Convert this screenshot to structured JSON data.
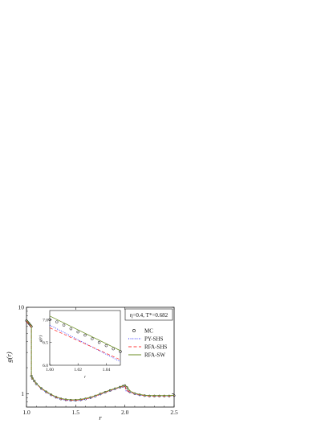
{
  "chart_data": [
    {
      "type": "line",
      "xlabel": "r",
      "ylabel": "g(r)",
      "xlim": [
        1.0,
        2.5
      ],
      "ylim": [
        0.7,
        10
      ],
      "yscale": "log",
      "xticks": [
        "1.0",
        "1.5",
        "2.0",
        "2.5"
      ],
      "yticks": [
        "1",
        "10"
      ],
      "annotation": "η=0.4, T*=0.682",
      "legend_position": "right",
      "legend": [
        "MC",
        "PY-SHS",
        "RFA-SHS",
        "RFA-SW"
      ],
      "series": [
        {
          "name": "MC",
          "style": "open-circles",
          "color": "#000000",
          "x": [
            1.0,
            1.01,
            1.02,
            1.03,
            1.04,
            1.05,
            1.05,
            1.06,
            1.08,
            1.1,
            1.15,
            1.2,
            1.25,
            1.3,
            1.35,
            1.4,
            1.45,
            1.5,
            1.55,
            1.6,
            1.65,
            1.7,
            1.75,
            1.8,
            1.85,
            1.9,
            1.95,
            1.98,
            2.0,
            2.02,
            2.03,
            2.05,
            2.1,
            2.15,
            2.2,
            2.25,
            2.3,
            2.35,
            2.4,
            2.45,
            2.5
          ],
          "y": [
            7.0,
            6.8,
            6.6,
            6.4,
            6.2,
            6.0,
            1.6,
            1.5,
            1.4,
            1.3,
            1.15,
            1.05,
            0.97,
            0.91,
            0.87,
            0.85,
            0.84,
            0.84,
            0.85,
            0.87,
            0.9,
            0.94,
            0.99,
            1.04,
            1.09,
            1.14,
            1.19,
            1.22,
            1.24,
            1.18,
            1.1,
            1.05,
            1.0,
            0.97,
            0.95,
            0.94,
            0.94,
            0.94,
            0.94,
            0.94,
            0.95
          ]
        },
        {
          "name": "PY-SHS",
          "style": "dotted",
          "color": "#1a1aff",
          "x": [
            1.0,
            1.05,
            1.05,
            1.06,
            1.08,
            1.1,
            1.15,
            1.2,
            1.25,
            1.3,
            1.35,
            1.4,
            1.45,
            1.5,
            1.55,
            1.6,
            1.65,
            1.7,
            1.75,
            1.8,
            1.85,
            1.9,
            1.95,
            2.0,
            2.01,
            2.05,
            2.1,
            2.15,
            2.2,
            2.25,
            2.3,
            2.35,
            2.4,
            2.45,
            2.5
          ],
          "y": [
            7.0,
            6.0,
            1.58,
            1.49,
            1.39,
            1.29,
            1.14,
            1.04,
            0.96,
            0.9,
            0.86,
            0.84,
            0.83,
            0.83,
            0.84,
            0.86,
            0.89,
            0.93,
            0.98,
            1.03,
            1.08,
            1.13,
            1.18,
            1.23,
            1.08,
            1.04,
            0.99,
            0.96,
            0.95,
            0.94,
            0.94,
            0.94,
            0.94,
            0.94,
            0.95
          ]
        },
        {
          "name": "RFA-SHS",
          "style": "dashed",
          "color": "#ff3b3b",
          "x": [
            1.0,
            1.05,
            1.05,
            1.06,
            1.08,
            1.1,
            1.15,
            1.2,
            1.25,
            1.3,
            1.35,
            1.4,
            1.45,
            1.5,
            1.55,
            1.6,
            1.65,
            1.7,
            1.75,
            1.8,
            1.85,
            1.9,
            1.95,
            2.0,
            2.01,
            2.05,
            2.1,
            2.15,
            2.2,
            2.25,
            2.3,
            2.35,
            2.4,
            2.45,
            2.5
          ],
          "y": [
            6.9,
            5.9,
            1.6,
            1.5,
            1.4,
            1.3,
            1.15,
            1.05,
            0.97,
            0.91,
            0.87,
            0.85,
            0.84,
            0.84,
            0.85,
            0.87,
            0.9,
            0.94,
            0.99,
            1.04,
            1.09,
            1.14,
            1.19,
            1.24,
            1.1,
            1.05,
            1.0,
            0.97,
            0.95,
            0.94,
            0.94,
            0.94,
            0.94,
            0.94,
            0.95
          ]
        },
        {
          "name": "RFA-SW",
          "style": "solid",
          "color": "#6b8e23",
          "x": [
            1.0,
            1.05,
            1.05,
            1.06,
            1.08,
            1.1,
            1.15,
            1.2,
            1.25,
            1.3,
            1.35,
            1.4,
            1.45,
            1.5,
            1.55,
            1.6,
            1.65,
            1.7,
            1.75,
            1.8,
            1.85,
            1.9,
            1.95,
            1.98,
            2.0,
            2.02,
            2.04,
            2.06,
            2.1,
            2.15,
            2.2,
            2.25,
            2.3,
            2.35,
            2.4,
            2.45,
            2.5
          ],
          "y": [
            7.1,
            6.1,
            1.62,
            1.51,
            1.41,
            1.31,
            1.16,
            1.06,
            0.98,
            0.92,
            0.88,
            0.86,
            0.85,
            0.85,
            0.86,
            0.88,
            0.91,
            0.95,
            1.0,
            1.05,
            1.1,
            1.15,
            1.2,
            1.23,
            1.25,
            1.2,
            1.12,
            1.06,
            1.01,
            0.98,
            0.96,
            0.95,
            0.95,
            0.95,
            0.95,
            0.95,
            0.96
          ]
        }
      ]
    },
    {
      "type": "line",
      "xlabel": "r",
      "ylabel": "g(r)",
      "xlim": [
        1.0,
        1.05
      ],
      "ylim": [
        6.0,
        7.2
      ],
      "xticks": [
        "1.00",
        "1.02",
        "1.04"
      ],
      "yticks": [
        "6.0",
        "6.5",
        "7.0"
      ],
      "series": [
        {
          "name": "MC",
          "style": "open-circles",
          "color": "#000000",
          "x": [
            1.0,
            1.005,
            1.01,
            1.015,
            1.02,
            1.025,
            1.03,
            1.035,
            1.04,
            1.045,
            1.05
          ],
          "y": [
            7.0,
            6.95,
            6.88,
            6.8,
            6.73,
            6.66,
            6.58,
            6.5,
            6.43,
            6.36,
            6.3
          ]
        },
        {
          "name": "PY-SHS",
          "style": "dotted",
          "color": "#1a1aff",
          "x": [
            1.0,
            1.05
          ],
          "y": [
            6.88,
            6.08
          ]
        },
        {
          "name": "RFA-SHS",
          "style": "dashed",
          "color": "#ff3b3b",
          "x": [
            1.0,
            1.05
          ],
          "y": [
            6.82,
            6.12
          ]
        },
        {
          "name": "RFA-SW",
          "style": "solid",
          "color": "#6b8e23",
          "x": [
            1.0,
            1.05
          ],
          "y": [
            7.08,
            6.32
          ]
        }
      ]
    }
  ]
}
